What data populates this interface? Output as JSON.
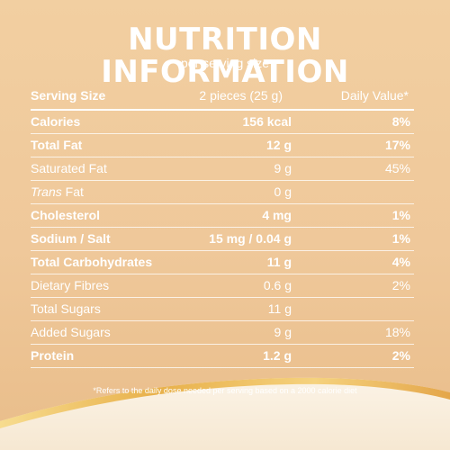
{
  "title": "NUTRITION INFORMATION",
  "subtitle": "per serving size",
  "header": {
    "label": "Serving Size",
    "amount": "2 pieces (25 g)",
    "daily_value": "Daily Value*"
  },
  "rows": [
    {
      "name": "Calories",
      "amount": "156 kcal",
      "dv": "8%"
    },
    {
      "name": "Total Fat",
      "amount": "12 g",
      "dv": "17%"
    },
    {
      "name": "Saturated Fat",
      "amount": "9 g",
      "dv": "45%"
    },
    {
      "name_italic": "Trans",
      "name_rest": " Fat",
      "amount": "0 g",
      "dv": ""
    },
    {
      "name": "Cholesterol",
      "amount": "4 mg",
      "dv": "1%"
    },
    {
      "name": "Sodium / Salt",
      "amount": "15 mg / 0.04 g",
      "dv": "1%"
    },
    {
      "name": "Total Carbohydrates",
      "amount": "11 g",
      "dv": "4%"
    },
    {
      "name": "Dietary Fibres",
      "amount": "0.6 g",
      "dv": "2%"
    },
    {
      "name": "Total Sugars",
      "amount": "11 g",
      "dv": ""
    },
    {
      "name": "Added Sugars",
      "amount": "9 g",
      "dv": "18%"
    },
    {
      "name": "Protein",
      "amount": "1.2 g",
      "dv": "2%"
    }
  ],
  "footnote": "*Refers to the daily dose needed per serving based on a 2000 calorie diet",
  "colors": {
    "background": "#efc89a",
    "text": "#ffffff",
    "swoosh_gold": "#e8b04a"
  }
}
